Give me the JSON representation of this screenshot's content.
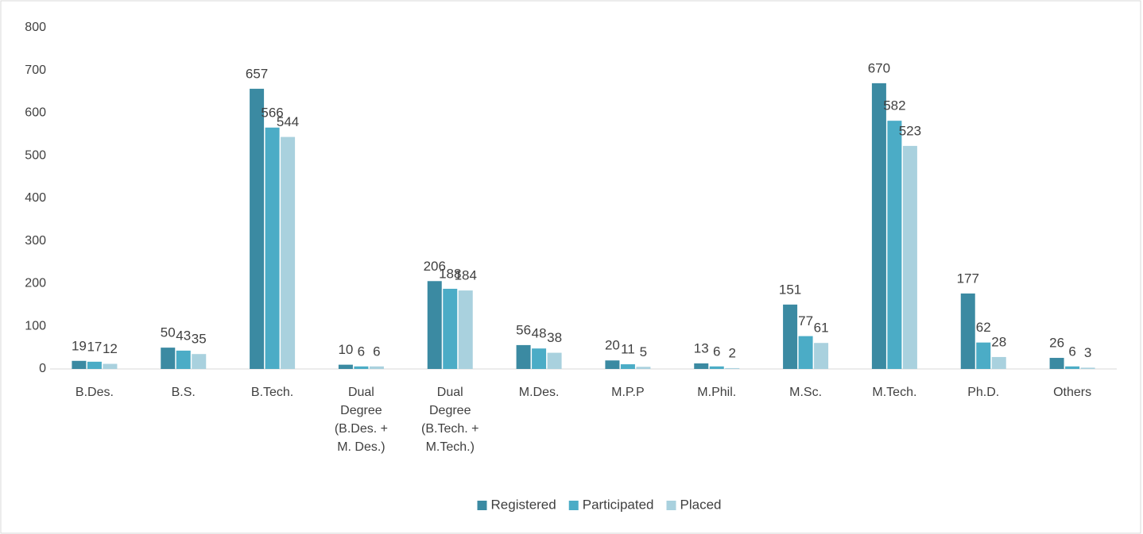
{
  "chart_data": {
    "type": "bar",
    "categories": [
      "B.Des.",
      "B.S.",
      "B.Tech.",
      "Dual Degree (B.Des. + M. Des.)",
      "Dual Degree (B.Tech. + M.Tech.)",
      "M.Des.",
      "M.P.P",
      "M.Phil.",
      "M.Sc.",
      "M.Tech.",
      "Ph.D.",
      "Others"
    ],
    "series": [
      {
        "name": "Registered",
        "color": "#3b8aa2",
        "values": [
          19,
          50,
          657,
          10,
          206,
          56,
          20,
          13,
          151,
          670,
          177,
          26
        ]
      },
      {
        "name": "Participated",
        "color": "#4bacc6",
        "values": [
          17,
          43,
          566,
          6,
          188,
          48,
          11,
          6,
          77,
          582,
          62,
          6
        ]
      },
      {
        "name": "Placed",
        "color": "#a9d1de",
        "values": [
          12,
          35,
          544,
          6,
          184,
          38,
          5,
          2,
          61,
          523,
          28,
          3
        ]
      }
    ],
    "ylim": [
      0,
      800
    ],
    "yticks": [
      0,
      100,
      200,
      300,
      400,
      500,
      600,
      700,
      800
    ],
    "grid": false,
    "legend": "bottom"
  }
}
